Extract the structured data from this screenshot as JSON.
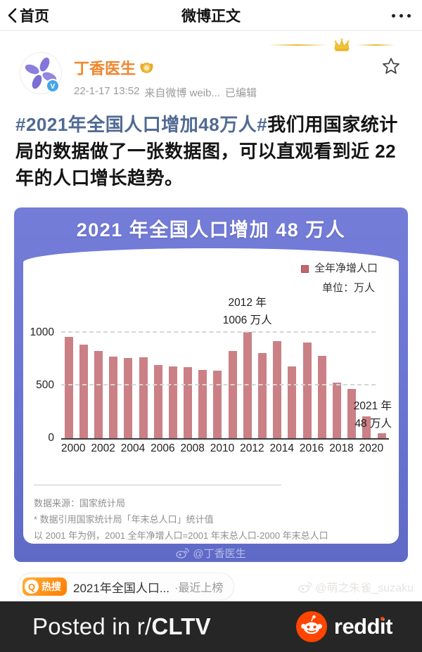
{
  "navbar": {
    "back_label": "首页",
    "title": "微博正文"
  },
  "post": {
    "author": "丁香医生",
    "timestamp": "22-1-17 13:52",
    "source": "来自微博 weib...",
    "edited": "已编辑",
    "hashtag": "#2021年全国人口增加48万人#",
    "body": "我们用国家统计局的数据做了一张数据图，可以直观看到近 22 年的人口增长趋势。"
  },
  "chart_data": {
    "type": "bar",
    "title": "2021 年全国人口增加 48 万人",
    "legend_label": "全年净增人口",
    "unit_label": "单位：万人",
    "categories": [
      2000,
      2001,
      2002,
      2003,
      2004,
      2005,
      2006,
      2007,
      2008,
      2009,
      2010,
      2011,
      2012,
      2013,
      2014,
      2015,
      2016,
      2017,
      2018,
      2019,
      2020,
      2021
    ],
    "values": [
      957,
      884,
      826,
      774,
      761,
      768,
      692,
      681,
      673,
      648,
      641,
      825,
      1006,
      804,
      920,
      680,
      906,
      779,
      530,
      467,
      204,
      48
    ],
    "ylim": [
      0,
      1000
    ],
    "yticks": [
      0,
      500,
      1000
    ],
    "x_tick_labels": [
      "2000",
      "2002",
      "2004",
      "2006",
      "2008",
      "2010",
      "2012",
      "2014",
      "2016",
      "2018",
      "2020"
    ],
    "grid": "dashed horizontal at 500 and 1000",
    "legend_position": "top-right",
    "bar_color": "#ca8085",
    "annotations": [
      {
        "target_year": 2012,
        "lines": [
          "2012 年",
          "1006 万人"
        ]
      },
      {
        "target_year": 2021,
        "lines": [
          "2021 年",
          "48 万人"
        ]
      }
    ],
    "source_lines": [
      "数据来源：国家统计局",
      "* 数据引用国家统计局「年末总人口」统计值",
      "以 2001 年为例，2001 全年净增人口=2001 年末总人口-2000 年末总人口"
    ]
  },
  "hot_search": {
    "badge": "热搜",
    "title": "2021年全国人口...",
    "suffix": "·最近上榜"
  },
  "watermarks": {
    "chart": "@丁香医生",
    "photo": "@萌之朱雀_suzaku"
  },
  "footer": {
    "posted_prefix": "Posted in r/",
    "subreddit": "CLTV",
    "brand": "reddit"
  },
  "colors": {
    "chart_frame_purple": "#6a74d2",
    "bar_rose": "#ca8085",
    "author_orange": "#f0862c",
    "hashtag_blue": "#516a94",
    "hot_badge_orange": "#ff7c00",
    "reddit_orange": "#ff4500",
    "footer_dark": "#262626"
  }
}
